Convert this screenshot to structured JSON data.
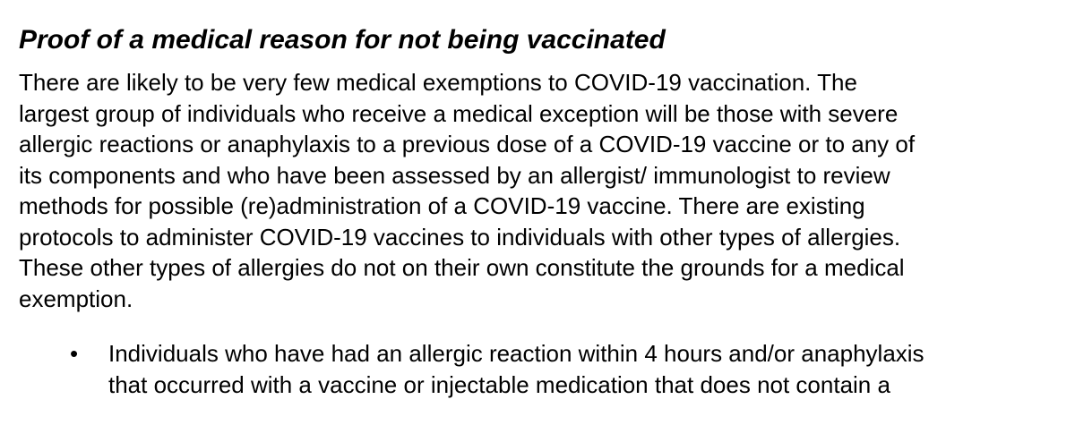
{
  "heading": "Proof of a medical reason for not being vaccinated",
  "paragraph": {
    "lines": [
      "There are likely to be very few medical exemptions to COVID-19 vaccination. The",
      "largest group of individuals who receive a medical exception will be those with severe",
      "allergic reactions or anaphylaxis to a previous dose of a COVID-19 vaccine or to any of",
      "its components and who have been assessed by an allergist/ immunologist to review",
      "methods for possible (re)administration of a COVID-19 vaccine. There are existing",
      "protocols to administer COVID-19 vaccines to individuals with other types of allergies.",
      "These other types of allergies do not on their own constitute the grounds for a medical",
      "exemption."
    ]
  },
  "bullets": [
    {
      "marker": "•",
      "lines": [
        "Individuals who have had an allergic reaction within 4 hours and/or anaphylaxis",
        "that occurred with a vaccine or injectable medication that does not contain a"
      ]
    }
  ]
}
